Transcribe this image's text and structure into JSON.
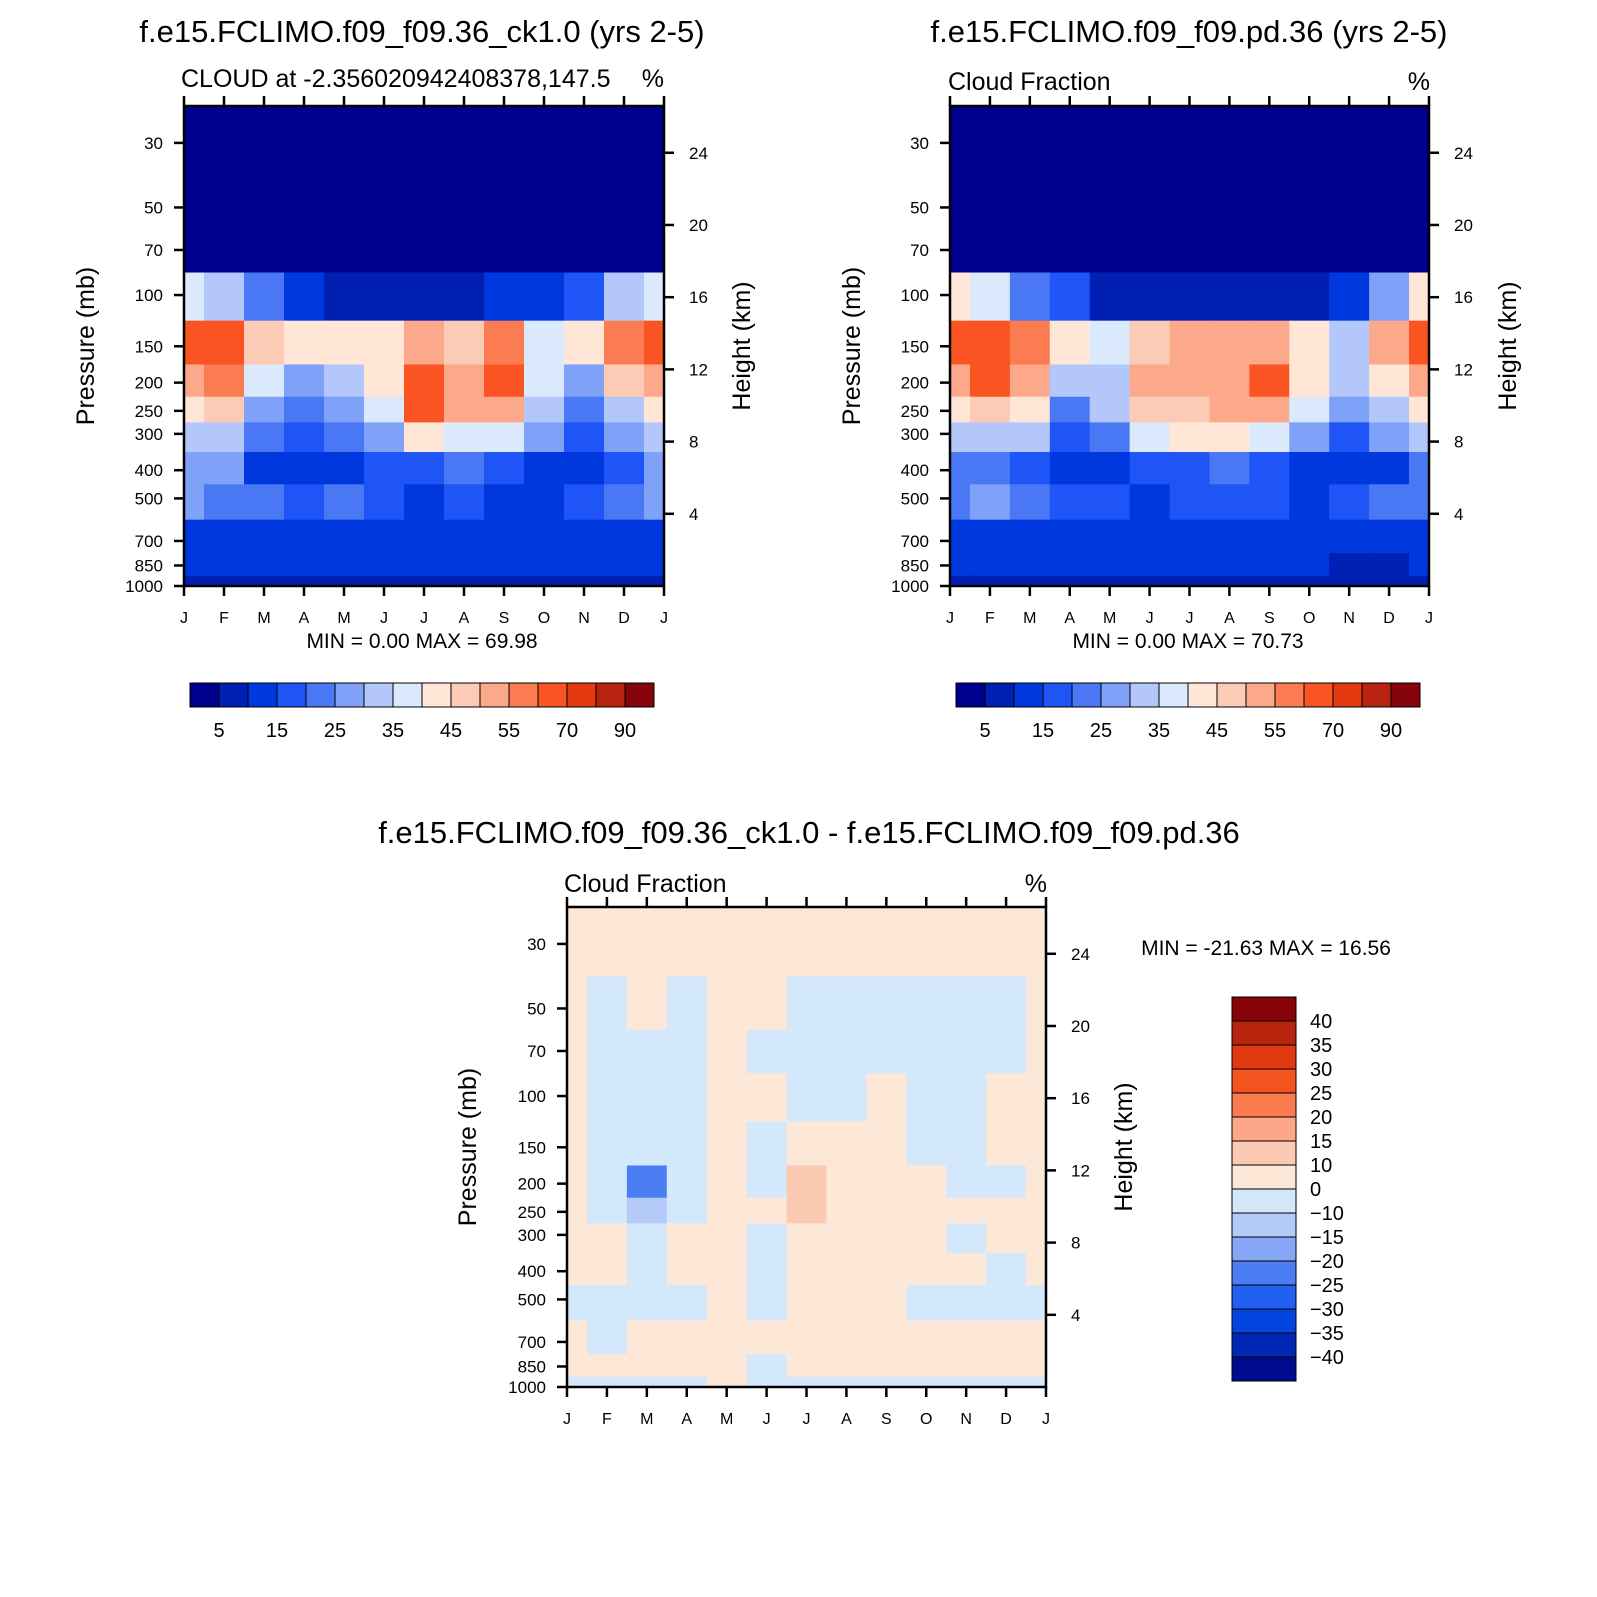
{
  "domain": "Chart",
  "colors": {
    "sequential_palette": [
      "#00008f",
      "#0020b4",
      "#0038e0",
      "#1f55f6",
      "#4a78f4",
      "#7fa1f7",
      "#b3c7fb",
      "#daeafc",
      "#ffe6d6",
      "#fccbb5",
      "#fca88a",
      "#fc7c52",
      "#fb5423",
      "#e33a10",
      "#b82310",
      "#86050a"
    ],
    "diverging_palette": [
      "#000b8d",
      "#0127b6",
      "#0343df",
      "#225ff3",
      "#4c7ef3",
      "#87a6f6",
      "#b4cbf9",
      "#d4e8fb",
      "#fde8d8",
      "#fccab3",
      "#fda78a",
      "#fb7a4e",
      "#f4521f",
      "#e03a10",
      "#b8250f",
      "#860509"
    ]
  },
  "chart_data": [
    {
      "type": "contour",
      "title": "f.e15.FCLIMO.f09_f09.36_ck1.0 (yrs 2-5)",
      "subtitle": "CLOUD at -2.356020942408378,147.5",
      "units": "%",
      "ylabel": "Pressure (mb)",
      "y2label": "Height (km)",
      "x": [
        "J",
        "F",
        "M",
        "A",
        "M",
        "J",
        "J",
        "A",
        "S",
        "O",
        "N",
        "D",
        "J"
      ],
      "pressure_ticks": [
        "30",
        "50",
        "70",
        "100",
        "150",
        "200",
        "250",
        "300",
        "400",
        "500",
        "700",
        "850",
        "1000"
      ],
      "height_ticks": [
        "24",
        "20",
        "16",
        "12",
        "8",
        "4"
      ],
      "stats": "MIN =    0.00  MAX =   69.98",
      "colorbar_labels": [
        "5",
        "15",
        "25",
        "35",
        "45",
        "55",
        "70",
        "90"
      ],
      "levels": [
        30,
        50,
        70,
        100,
        150,
        200,
        250,
        300,
        400,
        500,
        700,
        850,
        1000
      ],
      "values": [
        [
          0,
          0,
          0,
          0,
          0,
          0,
          0,
          0,
          0,
          0,
          0,
          0,
          0
        ],
        [
          0,
          0,
          0,
          0,
          0,
          0,
          0,
          0,
          0,
          0,
          0,
          0,
          0
        ],
        [
          4,
          3,
          2,
          0,
          0,
          0,
          0,
          0,
          0,
          0,
          0,
          3,
          4
        ],
        [
          36,
          32,
          22,
          14,
          9,
          6,
          8,
          9,
          12,
          10,
          18,
          30,
          36
        ],
        [
          62,
          66,
          48,
          40,
          42,
          42,
          54,
          48,
          58,
          36,
          40,
          58,
          62
        ],
        [
          52,
          58,
          36,
          28,
          31,
          44,
          64,
          50,
          60,
          38,
          28,
          46,
          52
        ],
        [
          40,
          46,
          26,
          22,
          26,
          38,
          60,
          50,
          52,
          34,
          24,
          34,
          40
        ],
        [
          32,
          34,
          20,
          16,
          20,
          28,
          42,
          38,
          36,
          26,
          18,
          26,
          32
        ],
        [
          26,
          26,
          14,
          10,
          12,
          18,
          16,
          20,
          16,
          13,
          10,
          16,
          26
        ],
        [
          26,
          24,
          22,
          17,
          20,
          16,
          14,
          16,
          14,
          13,
          18,
          22,
          26
        ],
        [
          14,
          14,
          14,
          12,
          12,
          12,
          12,
          12,
          12,
          12,
          12,
          12,
          14
        ],
        [
          10,
          10,
          10,
          10,
          10,
          11,
          12,
          11,
          10,
          10,
          10,
          10,
          10
        ],
        [
          6,
          6,
          6,
          6,
          6,
          6,
          6,
          6,
          6,
          6,
          6,
          6,
          6
        ]
      ]
    },
    {
      "type": "contour",
      "title": "f.e15.FCLIMO.f09_f09.pd.36 (yrs 2-5)",
      "subtitle": "Cloud Fraction",
      "units": "%",
      "ylabel": "Pressure (mb)",
      "y2label": "Height (km)",
      "x": [
        "J",
        "F",
        "M",
        "A",
        "M",
        "J",
        "J",
        "A",
        "S",
        "O",
        "N",
        "D",
        "J"
      ],
      "pressure_ticks": [
        "30",
        "50",
        "70",
        "100",
        "150",
        "200",
        "250",
        "300",
        "400",
        "500",
        "700",
        "850",
        "1000"
      ],
      "height_ticks": [
        "24",
        "20",
        "16",
        "12",
        "8",
        "4"
      ],
      "stats": "MIN =    0.00  MAX =   70.73",
      "colorbar_labels": [
        "5",
        "15",
        "25",
        "35",
        "45",
        "55",
        "70",
        "90"
      ],
      "levels": [
        30,
        50,
        70,
        100,
        150,
        200,
        250,
        300,
        400,
        500,
        700,
        850,
        1000
      ],
      "values": [
        [
          0,
          0,
          0,
          0,
          0,
          0,
          0,
          0,
          0,
          0,
          0,
          0,
          0
        ],
        [
          0,
          0,
          0,
          0,
          0,
          0,
          0,
          0,
          0,
          0,
          0,
          0,
          0
        ],
        [
          4,
          3,
          2,
          0,
          0,
          0,
          0,
          0,
          0,
          0,
          0,
          3,
          4
        ],
        [
          40,
          36,
          24,
          16,
          8,
          5,
          6,
          7,
          8,
          8,
          14,
          28,
          40
        ],
        [
          60,
          68,
          56,
          40,
          38,
          46,
          50,
          50,
          50,
          42,
          34,
          52,
          60
        ],
        [
          52,
          62,
          50,
          32,
          34,
          50,
          54,
          54,
          62,
          42,
          30,
          40,
          52
        ],
        [
          42,
          48,
          40,
          24,
          30,
          46,
          48,
          50,
          52,
          36,
          26,
          32,
          42
        ],
        [
          32,
          34,
          30,
          18,
          22,
          36,
          40,
          42,
          36,
          26,
          18,
          26,
          32
        ],
        [
          22,
          24,
          18,
          12,
          12,
          18,
          18,
          20,
          16,
          12,
          10,
          14,
          22
        ],
        [
          24,
          26,
          22,
          18,
          16,
          14,
          16,
          16,
          15,
          14,
          16,
          24,
          24
        ],
        [
          14,
          14,
          12,
          12,
          12,
          12,
          12,
          12,
          12,
          12,
          10,
          12,
          14
        ],
        [
          10,
          10,
          10,
          10,
          10,
          11,
          11,
          10,
          10,
          10,
          8,
          8,
          10
        ],
        [
          6,
          6,
          6,
          6,
          6,
          6,
          6,
          6,
          6,
          6,
          6,
          6,
          6
        ]
      ]
    },
    {
      "type": "contour",
      "title": "f.e15.FCLIMO.f09_f09.36_ck1.0 - f.e15.FCLIMO.f09_f09.pd.36",
      "subtitle": "Cloud Fraction",
      "units": "%",
      "ylabel": "Pressure (mb)",
      "y2label": "Height (km)",
      "x": [
        "J",
        "F",
        "M",
        "A",
        "M",
        "J",
        "J",
        "A",
        "S",
        "O",
        "N",
        "D",
        "J"
      ],
      "pressure_ticks": [
        "30",
        "50",
        "70",
        "100",
        "150",
        "200",
        "250",
        "300",
        "400",
        "500",
        "700",
        "850",
        "1000"
      ],
      "height_ticks": [
        "24",
        "20",
        "16",
        "12",
        "8",
        "4"
      ],
      "stats": "MIN = -21.63 MAX =   16.56",
      "colorbar_labels": [
        "40",
        "35",
        "30",
        "25",
        "20",
        "15",
        "10",
        "0",
        "-10",
        "-15",
        "-20",
        "-25",
        "-30",
        "-35",
        "-40"
      ],
      "levels": [
        30,
        50,
        70,
        100,
        150,
        200,
        250,
        300,
        400,
        500,
        700,
        850,
        1000
      ],
      "values": [
        [
          1,
          1,
          1,
          1,
          1,
          1,
          1,
          1,
          1,
          1,
          1,
          1,
          1
        ],
        [
          1,
          -1,
          1,
          -1,
          1,
          1,
          -1,
          -1,
          -1,
          -1,
          -1,
          -1,
          1
        ],
        [
          1,
          -2,
          -1,
          -2,
          1,
          -1,
          -1,
          -1,
          -1,
          -1,
          -1,
          -2,
          1
        ],
        [
          1,
          -2,
          -2,
          -3,
          1,
          1,
          -1,
          -1,
          1,
          -1,
          -1,
          1,
          1
        ],
        [
          1,
          -3,
          -8,
          -2,
          1,
          -3,
          1,
          1,
          1,
          -1,
          -1,
          1,
          1
        ],
        [
          1,
          -3,
          -21,
          -3,
          4,
          -1,
          14,
          1,
          1,
          1,
          -2,
          -1,
          1
        ],
        [
          1,
          -2,
          -12,
          -2,
          5,
          1,
          12,
          1,
          1,
          1,
          1,
          1,
          1
        ],
        [
          1,
          1,
          -3,
          1,
          1,
          -2,
          2,
          1,
          1,
          1,
          -1,
          1,
          1
        ],
        [
          1,
          1,
          -2,
          1,
          1,
          -2,
          1,
          1,
          1,
          1,
          1,
          -2,
          1
        ],
        [
          -3,
          -3,
          -2,
          -2,
          1,
          -2,
          1,
          1,
          1,
          -2,
          -3,
          -4,
          -3
        ],
        [
          1,
          -1,
          1,
          1,
          1,
          1,
          1,
          1,
          1,
          1,
          1,
          1,
          1
        ],
        [
          1,
          1,
          1,
          1,
          1,
          -1,
          1,
          1,
          1,
          1,
          1,
          1,
          1
        ],
        [
          -1,
          -1,
          -1,
          -1,
          1,
          -1,
          -1,
          -1,
          -1,
          -1,
          -1,
          -1,
          -1
        ]
      ]
    }
  ]
}
